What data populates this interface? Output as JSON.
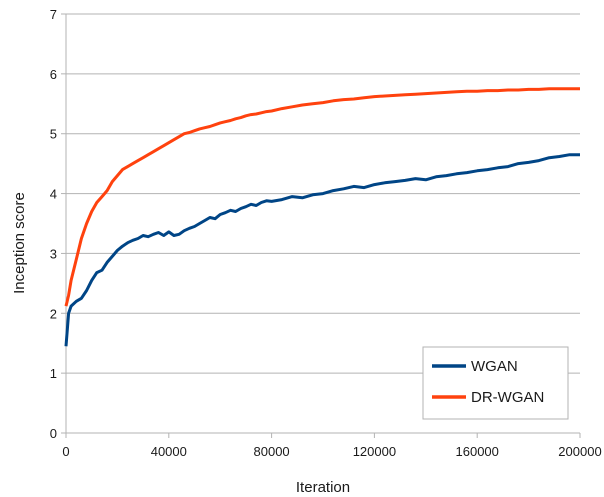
{
  "chart_data": {
    "type": "line",
    "xlabel": "Iteration",
    "ylabel": "Inception score",
    "xlim": [
      0,
      200000
    ],
    "ylim": [
      0,
      7
    ],
    "x_ticks": [
      0,
      40000,
      80000,
      120000,
      160000,
      200000
    ],
    "y_ticks": [
      0,
      1,
      2,
      3,
      4,
      5,
      6,
      7
    ],
    "grid": "horizontal",
    "legend_position": "bottom-right",
    "series": [
      {
        "name": "WGAN",
        "color": "#004586",
        "points": [
          [
            0,
            1.45
          ],
          [
            1000,
            2.0
          ],
          [
            2000,
            2.12
          ],
          [
            4000,
            2.2
          ],
          [
            6000,
            2.25
          ],
          [
            8000,
            2.38
          ],
          [
            10000,
            2.55
          ],
          [
            12000,
            2.68
          ],
          [
            14000,
            2.72
          ],
          [
            16000,
            2.85
          ],
          [
            18000,
            2.95
          ],
          [
            20000,
            3.05
          ],
          [
            22000,
            3.12
          ],
          [
            24000,
            3.18
          ],
          [
            26000,
            3.22
          ],
          [
            28000,
            3.25
          ],
          [
            30000,
            3.3
          ],
          [
            32000,
            3.28
          ],
          [
            34000,
            3.32
          ],
          [
            36000,
            3.35
          ],
          [
            38000,
            3.3
          ],
          [
            40000,
            3.36
          ],
          [
            42000,
            3.3
          ],
          [
            44000,
            3.32
          ],
          [
            46000,
            3.38
          ],
          [
            48000,
            3.42
          ],
          [
            50000,
            3.45
          ],
          [
            52000,
            3.5
          ],
          [
            54000,
            3.55
          ],
          [
            56000,
            3.6
          ],
          [
            58000,
            3.58
          ],
          [
            60000,
            3.65
          ],
          [
            62000,
            3.68
          ],
          [
            64000,
            3.72
          ],
          [
            66000,
            3.7
          ],
          [
            68000,
            3.75
          ],
          [
            70000,
            3.78
          ],
          [
            72000,
            3.82
          ],
          [
            74000,
            3.8
          ],
          [
            76000,
            3.85
          ],
          [
            78000,
            3.88
          ],
          [
            80000,
            3.87
          ],
          [
            84000,
            3.9
          ],
          [
            88000,
            3.95
          ],
          [
            92000,
            3.93
          ],
          [
            96000,
            3.98
          ],
          [
            100000,
            4.0
          ],
          [
            104000,
            4.05
          ],
          [
            108000,
            4.08
          ],
          [
            112000,
            4.12
          ],
          [
            116000,
            4.1
          ],
          [
            120000,
            4.15
          ],
          [
            124000,
            4.18
          ],
          [
            128000,
            4.2
          ],
          [
            132000,
            4.22
          ],
          [
            136000,
            4.25
          ],
          [
            140000,
            4.23
          ],
          [
            144000,
            4.28
          ],
          [
            148000,
            4.3
          ],
          [
            152000,
            4.33
          ],
          [
            156000,
            4.35
          ],
          [
            160000,
            4.38
          ],
          [
            164000,
            4.4
          ],
          [
            168000,
            4.43
          ],
          [
            172000,
            4.45
          ],
          [
            176000,
            4.5
          ],
          [
            180000,
            4.52
          ],
          [
            184000,
            4.55
          ],
          [
            188000,
            4.6
          ],
          [
            192000,
            4.62
          ],
          [
            196000,
            4.65
          ],
          [
            200000,
            4.65
          ]
        ]
      },
      {
        "name": "DR-WGAN",
        "color": "#ff420e",
        "points": [
          [
            0,
            2.12
          ],
          [
            1000,
            2.3
          ],
          [
            2000,
            2.55
          ],
          [
            4000,
            2.9
          ],
          [
            6000,
            3.25
          ],
          [
            8000,
            3.5
          ],
          [
            10000,
            3.7
          ],
          [
            12000,
            3.85
          ],
          [
            14000,
            3.95
          ],
          [
            16000,
            4.05
          ],
          [
            18000,
            4.2
          ],
          [
            20000,
            4.3
          ],
          [
            22000,
            4.4
          ],
          [
            24000,
            4.45
          ],
          [
            26000,
            4.5
          ],
          [
            28000,
            4.55
          ],
          [
            30000,
            4.6
          ],
          [
            32000,
            4.65
          ],
          [
            34000,
            4.7
          ],
          [
            36000,
            4.75
          ],
          [
            38000,
            4.8
          ],
          [
            40000,
            4.85
          ],
          [
            42000,
            4.9
          ],
          [
            44000,
            4.95
          ],
          [
            46000,
            5.0
          ],
          [
            48000,
            5.02
          ],
          [
            50000,
            5.05
          ],
          [
            52000,
            5.08
          ],
          [
            54000,
            5.1
          ],
          [
            56000,
            5.12
          ],
          [
            58000,
            5.15
          ],
          [
            60000,
            5.18
          ],
          [
            62000,
            5.2
          ],
          [
            64000,
            5.22
          ],
          [
            66000,
            5.25
          ],
          [
            68000,
            5.27
          ],
          [
            70000,
            5.3
          ],
          [
            72000,
            5.32
          ],
          [
            74000,
            5.33
          ],
          [
            76000,
            5.35
          ],
          [
            78000,
            5.37
          ],
          [
            80000,
            5.38
          ],
          [
            84000,
            5.42
          ],
          [
            88000,
            5.45
          ],
          [
            92000,
            5.48
          ],
          [
            96000,
            5.5
          ],
          [
            100000,
            5.52
          ],
          [
            104000,
            5.55
          ],
          [
            108000,
            5.57
          ],
          [
            112000,
            5.58
          ],
          [
            116000,
            5.6
          ],
          [
            120000,
            5.62
          ],
          [
            124000,
            5.63
          ],
          [
            128000,
            5.64
          ],
          [
            132000,
            5.65
          ],
          [
            136000,
            5.66
          ],
          [
            140000,
            5.67
          ],
          [
            144000,
            5.68
          ],
          [
            148000,
            5.69
          ],
          [
            152000,
            5.7
          ],
          [
            156000,
            5.71
          ],
          [
            160000,
            5.71
          ],
          [
            164000,
            5.72
          ],
          [
            168000,
            5.72
          ],
          [
            172000,
            5.73
          ],
          [
            176000,
            5.73
          ],
          [
            180000,
            5.74
          ],
          [
            184000,
            5.74
          ],
          [
            188000,
            5.75
          ],
          [
            192000,
            5.75
          ],
          [
            196000,
            5.75
          ],
          [
            200000,
            5.75
          ]
        ]
      }
    ]
  }
}
